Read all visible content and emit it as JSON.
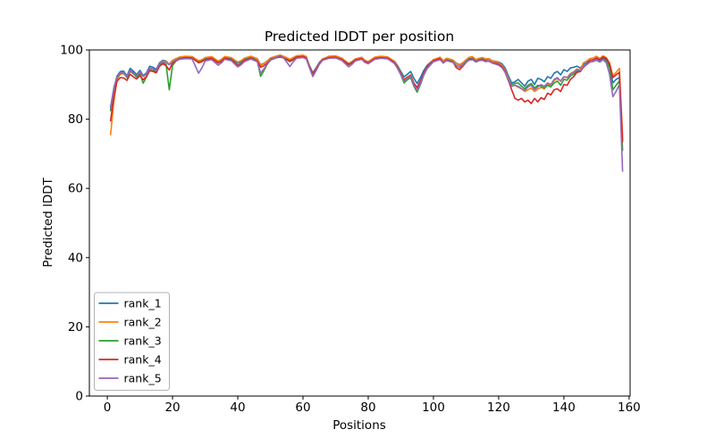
{
  "figure": {
    "background": "#ffffff",
    "text_color": "#000000",
    "spine_color": "#000000"
  },
  "chart_data": {
    "type": "line",
    "title": "Predicted lDDT per position",
    "xlabel": "Positions",
    "ylabel": "Predicted lDDT",
    "xlim": [
      -5.5,
      160.3
    ],
    "ylim": [
      0,
      100
    ],
    "xticks": [
      0,
      20,
      40,
      60,
      80,
      100,
      120,
      140,
      160
    ],
    "yticks": [
      0,
      20,
      40,
      60,
      80,
      100
    ],
    "grid": false,
    "legend_position": "lower left",
    "x": [
      1,
      2,
      3,
      4,
      5,
      6,
      7,
      8,
      9,
      10,
      11,
      12,
      13,
      14,
      15,
      16,
      17,
      18,
      19,
      20,
      21,
      22,
      24,
      26,
      28,
      29,
      30,
      32,
      34,
      35,
      36,
      38,
      40,
      41,
      42,
      44,
      46,
      47,
      48,
      49,
      50,
      52,
      53,
      54,
      56,
      57,
      58,
      60,
      61,
      62,
      63,
      64,
      65,
      66,
      68,
      70,
      72,
      74,
      75,
      76,
      78,
      79,
      80,
      82,
      84,
      86,
      88,
      89,
      90,
      91,
      92,
      93,
      94,
      95,
      96,
      97,
      98,
      100,
      102,
      103,
      104,
      106,
      107,
      108,
      109,
      110,
      111,
      112,
      113,
      114,
      115,
      116,
      117,
      118,
      119,
      120,
      121,
      122,
      123,
      124,
      125,
      126,
      127,
      128,
      129,
      130,
      131,
      132,
      133,
      134,
      135,
      136,
      137,
      138,
      139,
      140,
      141,
      142,
      143,
      144,
      145,
      146,
      147,
      148,
      149,
      150,
      151,
      152,
      153,
      154,
      155,
      156,
      157,
      158
    ],
    "series": [
      {
        "name": "rank_1",
        "color": "#1f77b4",
        "values": [
          83.5,
          89,
          92.5,
          93.8,
          93.9,
          92.5,
          94.7,
          93.9,
          92.9,
          94.1,
          92.6,
          93.4,
          95.3,
          95,
          94.4,
          96.3,
          97,
          96.8,
          95.8,
          96.9,
          97.3,
          97.6,
          97.8,
          97.7,
          96.6,
          96.9,
          97.4,
          97.7,
          96.5,
          97,
          97.8,
          97.5,
          96.2,
          96.6,
          97.3,
          97.9,
          97.4,
          95.7,
          96.1,
          96.8,
          97.5,
          98,
          98.2,
          98,
          97.2,
          97.6,
          98,
          98.1,
          97.8,
          95.5,
          93.4,
          94.8,
          96.4,
          97.4,
          98,
          98.1,
          97.5,
          96.1,
          96.6,
          97.4,
          97.8,
          97,
          96.6,
          97.7,
          98,
          97.8,
          96.8,
          95.5,
          93.8,
          92.2,
          93,
          93.8,
          91.8,
          90.3,
          92,
          94,
          95.5,
          97.2,
          97.7,
          96.9,
          97.4,
          97,
          96.2,
          95.7,
          96.3,
          97,
          97.5,
          97.6,
          96.9,
          97.3,
          97.5,
          97.2,
          97.4,
          96.9,
          96.7,
          96.5,
          96,
          94.8,
          92.5,
          90.5,
          90.8,
          91.5,
          90.5,
          89.5,
          91,
          91.5,
          90,
          91.8,
          91.5,
          90.8,
          92.3,
          91.8,
          93.3,
          93.8,
          92.8,
          94.3,
          93.8,
          94.8,
          95,
          95.3,
          94.8,
          95.8,
          96.3,
          97,
          97.2,
          97.5,
          97,
          97.7,
          97.2,
          95.5,
          90.5,
          91.5,
          92,
          74
        ]
      },
      {
        "name": "rank_2",
        "color": "#ff7f0e",
        "values": [
          75.5,
          85,
          91.5,
          93,
          93.2,
          92.2,
          93.8,
          93.2,
          92.4,
          93.4,
          92.3,
          93,
          94.6,
          94.4,
          94,
          96,
          96.8,
          96.6,
          95.9,
          97,
          97.5,
          97.9,
          98.2,
          98.1,
          96.9,
          97.2,
          97.8,
          98.1,
          96.8,
          97.3,
          98.1,
          97.8,
          96.5,
          96.9,
          97.6,
          98.2,
          97.5,
          95.5,
          96,
          96.8,
          97.7,
          98.3,
          98.5,
          98.2,
          97.3,
          97.8,
          98.3,
          98.5,
          98.1,
          95.3,
          93,
          94.5,
          96.2,
          97.4,
          98.2,
          98.3,
          97.6,
          96,
          96.5,
          97.4,
          97.9,
          97,
          96.6,
          97.9,
          98.2,
          98,
          96.7,
          95.2,
          93.3,
          91.5,
          92.2,
          92.8,
          90.5,
          89,
          90.8,
          93.2,
          95,
          97.2,
          97.9,
          96.9,
          97.6,
          97.1,
          96.1,
          95.5,
          96.3,
          97.2,
          97.9,
          98.1,
          97.2,
          97.6,
          97.8,
          97.4,
          97.5,
          96.9,
          96.6,
          96.3,
          95.6,
          94.2,
          91.8,
          89.5,
          89.8,
          89.2,
          88.8,
          88,
          88.5,
          89,
          88,
          88.7,
          89.2,
          88.7,
          90.2,
          89.7,
          91.2,
          91.7,
          91,
          92.2,
          92,
          93.2,
          93.7,
          94.5,
          94.2,
          96.3,
          96.8,
          97.5,
          97.7,
          98.2,
          97.5,
          98.3,
          97.8,
          96.3,
          92.5,
          93.5,
          94.7,
          75.5
        ]
      },
      {
        "name": "rank_3",
        "color": "#2ca02c",
        "values": [
          82.5,
          88.5,
          92,
          93.3,
          93.4,
          92,
          93.9,
          93.1,
          92.2,
          93.1,
          90.4,
          92.2,
          94.2,
          94,
          93.6,
          95.6,
          96.4,
          95.8,
          88.5,
          95.5,
          96.8,
          97.3,
          97.7,
          97.6,
          96.4,
          96.7,
          97.3,
          97.6,
          96.3,
          96.8,
          97.6,
          97.3,
          95.6,
          96.1,
          97,
          97.7,
          96.8,
          92.4,
          94,
          95.8,
          97.1,
          97.8,
          98,
          97.7,
          96.6,
          97.2,
          97.8,
          98,
          97.6,
          95,
          92.6,
          94.2,
          96,
          97.1,
          97.7,
          97.8,
          97.1,
          95.7,
          96.2,
          97,
          97.4,
          96.6,
          96.2,
          97.4,
          97.7,
          97.5,
          96.2,
          94.7,
          92.8,
          90.5,
          91.4,
          92,
          89.5,
          87.8,
          90,
          92.6,
          94.5,
          96.8,
          97.4,
          96.4,
          97.1,
          96.6,
          95.5,
          95,
          95.8,
          96.7,
          97.3,
          97.4,
          96.7,
          97.1,
          97.3,
          96.9,
          96.7,
          96.3,
          96.1,
          95.8,
          95,
          93.5,
          91,
          90,
          90.3,
          90.5,
          89.5,
          88.8,
          89.8,
          90.3,
          89,
          89.8,
          89.5,
          89,
          89.8,
          89.3,
          90.5,
          91,
          89.8,
          91.5,
          91.3,
          92.5,
          93,
          94,
          93.7,
          95.2,
          95.8,
          96.5,
          96.7,
          97,
          96.5,
          97.2,
          96.8,
          94.8,
          88.5,
          89.8,
          91,
          71
        ]
      },
      {
        "name": "rank_4",
        "color": "#d62728",
        "values": [
          79.5,
          86.5,
          91,
          92,
          91.9,
          91.2,
          93,
          92.2,
          91.6,
          92.6,
          91.4,
          92.4,
          94,
          93.8,
          93.4,
          95.3,
          96,
          95.5,
          94.2,
          96.2,
          96.8,
          97.3,
          97.8,
          97.7,
          96.3,
          96.6,
          97.2,
          97.6,
          96.2,
          96.7,
          97.6,
          97.2,
          95.5,
          96,
          96.9,
          97.6,
          96.8,
          95,
          95.4,
          96.2,
          97.1,
          97.8,
          98,
          97.7,
          96.8,
          97.3,
          97.9,
          98.1,
          97.7,
          95,
          92.9,
          94.4,
          96.1,
          97.2,
          97.8,
          97.9,
          97.2,
          95.8,
          96.3,
          97.1,
          97.5,
          96.7,
          96.3,
          97.5,
          97.8,
          97.6,
          96.4,
          95,
          93.2,
          91.3,
          92,
          92.6,
          90.3,
          89.2,
          91,
          93.3,
          95,
          96.9,
          97.5,
          96.2,
          97,
          96.5,
          94.9,
          94.3,
          95.3,
          96.4,
          97.2,
          97.4,
          96.6,
          97,
          97.2,
          96.8,
          96.9,
          96.4,
          96.2,
          95.9,
          95.2,
          93.8,
          91.2,
          88.5,
          86,
          85.5,
          86,
          85,
          85.5,
          84.5,
          86,
          85,
          86.2,
          85.7,
          87.5,
          87,
          88.5,
          88.8,
          88,
          90,
          89.8,
          91.5,
          92.3,
          93.5,
          93.8,
          95,
          95.8,
          97,
          97.2,
          97.7,
          97.2,
          98,
          97.5,
          96,
          92,
          92.8,
          93.5,
          73.5
        ]
      },
      {
        "name": "rank_5",
        "color": "#9467bd",
        "values": [
          83,
          89,
          92.3,
          93.5,
          93.6,
          92.3,
          94.2,
          93.4,
          92.6,
          93.7,
          92.4,
          93.1,
          94.8,
          94.5,
          94.1,
          96,
          96.6,
          96.4,
          95.7,
          96.6,
          97,
          97.3,
          97.5,
          97.4,
          93.3,
          94.8,
          96.8,
          97.2,
          95.6,
          96.3,
          97.3,
          96.9,
          95.1,
          95.7,
          96.6,
          97.4,
          96.6,
          93.3,
          94.5,
          95.8,
          97,
          98,
          98.4,
          97.8,
          95.2,
          96.6,
          97.6,
          97.8,
          97.4,
          94.8,
          92.3,
          94,
          95.8,
          97,
          97.6,
          97.7,
          96.9,
          95.1,
          95.8,
          96.8,
          97.3,
          96.4,
          96,
          97.3,
          97.6,
          97.4,
          96.1,
          94.7,
          92.9,
          91,
          91.8,
          92.4,
          89.8,
          88.3,
          90.3,
          92.8,
          94.6,
          96.6,
          97.2,
          96.3,
          96.9,
          96.4,
          95.5,
          95,
          95.7,
          96.5,
          97.1,
          97.2,
          96.5,
          96.9,
          97,
          96.6,
          96.8,
          96.2,
          95.9,
          95.6,
          94.9,
          93.6,
          91.3,
          89.5,
          89.8,
          89.5,
          88.8,
          88.3,
          89.3,
          89.8,
          88.5,
          89.3,
          90,
          89.5,
          90.5,
          90,
          91.5,
          92,
          91,
          92.3,
          92,
          93,
          93.5,
          94.3,
          94,
          95.3,
          95.8,
          96.5,
          96.7,
          97,
          96.6,
          97.2,
          96.3,
          93,
          86.5,
          88,
          90,
          65
        ]
      }
    ]
  }
}
